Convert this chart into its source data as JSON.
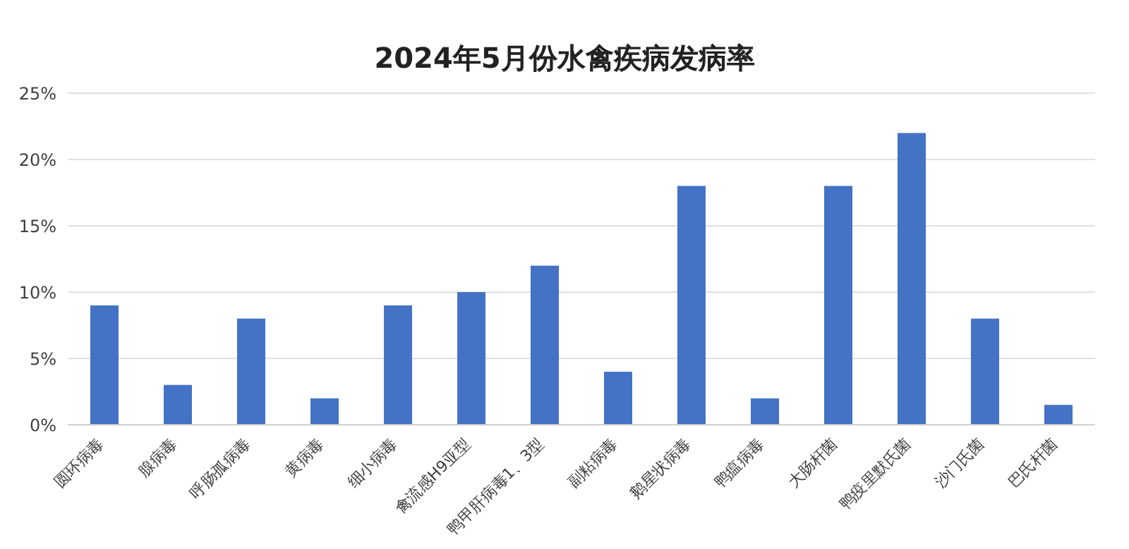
{
  "chart_data": {
    "type": "bar",
    "title": "2024年5月份水禽疾病发病率",
    "categories": [
      "圆环病毒",
      "腺病毒",
      "呼肠孤病毒",
      "黄病毒",
      "细小病毒",
      "禽流感H9亚型",
      "鸭甲肝病毒1、3型",
      "副粘病毒",
      "鹅星状病毒",
      "鸭瘟病毒",
      "大肠杆菌",
      "鸭疫里默氏菌",
      "沙门氏菌",
      "巴氏杆菌"
    ],
    "values": [
      9,
      3,
      8,
      2,
      9,
      10,
      12,
      4,
      18,
      2,
      18,
      22,
      8,
      1.5
    ],
    "color": "#4472c4",
    "ylim": [
      0,
      25
    ],
    "yticks": [
      {
        "value": 0,
        "label": "0%"
      },
      {
        "value": 5,
        "label": "5%"
      },
      {
        "value": 10,
        "label": "10%"
      },
      {
        "value": 15,
        "label": "15%"
      },
      {
        "value": 20,
        "label": "20%"
      },
      {
        "value": 25,
        "label": "25%"
      }
    ],
    "grid": "y"
  }
}
